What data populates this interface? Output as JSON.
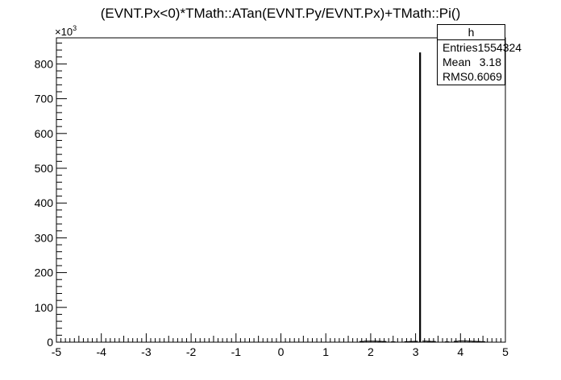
{
  "chart_data": {
    "type": "bar",
    "title": "(EVNT.Px<0)*TMath::ATan(EVNT.Py/EVNT.Px)+TMath::Pi()",
    "xlabel": "",
    "ylabel": "",
    "xlim": [
      -5,
      5
    ],
    "ylim": [
      0,
      875000
    ],
    "x_ticks": [
      "-5",
      "-4",
      "-3",
      "-2",
      "-1",
      "0",
      "1",
      "2",
      "3",
      "4",
      "5"
    ],
    "y_ticks": [
      "0",
      "100",
      "200",
      "300",
      "400",
      "500",
      "600",
      "700",
      "800"
    ],
    "y_exponent_label": "×10",
    "y_exponent_power": "3",
    "grid": false,
    "bins": [
      {
        "x": 1.8,
        "y": 2000
      },
      {
        "x": 1.9,
        "y": 3000
      },
      {
        "x": 2.0,
        "y": 3000
      },
      {
        "x": 2.1,
        "y": 3000
      },
      {
        "x": 2.2,
        "y": 2500
      },
      {
        "x": 2.3,
        "y": 2000
      },
      {
        "x": 2.5,
        "y": 1000
      },
      {
        "x": 2.8,
        "y": 1500
      },
      {
        "x": 2.9,
        "y": 2000
      },
      {
        "x": 3.0,
        "y": 2500
      },
      {
        "x": 3.1,
        "y": 833000
      },
      {
        "x": 3.2,
        "y": 3000
      },
      {
        "x": 3.3,
        "y": 2500
      },
      {
        "x": 3.4,
        "y": 2000
      },
      {
        "x": 3.7,
        "y": 1000
      },
      {
        "x": 3.9,
        "y": 2500
      },
      {
        "x": 4.0,
        "y": 3500
      },
      {
        "x": 4.1,
        "y": 3500
      },
      {
        "x": 4.2,
        "y": 3000
      },
      {
        "x": 4.3,
        "y": 2500
      },
      {
        "x": 4.4,
        "y": 2000
      },
      {
        "x": 4.5,
        "y": 1500
      }
    ],
    "color": "#000000"
  },
  "stats": {
    "name": "h",
    "rows": [
      {
        "label": "Entries",
        "value": "1554324"
      },
      {
        "label": "Mean",
        "value": "3.18"
      },
      {
        "label": "RMS",
        "value": "0.6069"
      }
    ]
  }
}
